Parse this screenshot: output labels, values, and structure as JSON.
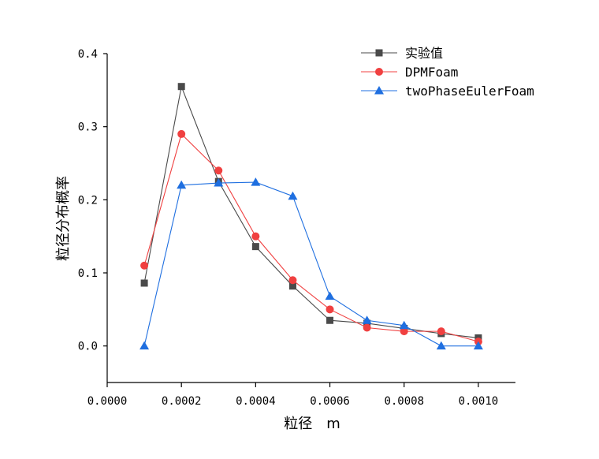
{
  "chart_data": {
    "type": "line",
    "title": "",
    "xlabel": "粒径　m",
    "ylabel": "粒径分布概率",
    "xlim": [
      0,
      0.0011
    ],
    "ylim": [
      -0.05,
      0.4
    ],
    "xticks": [
      "0.0000",
      "0.0002",
      "0.0004",
      "0.0006",
      "0.0008",
      "0.0010"
    ],
    "xtick_values": [
      0,
      0.0002,
      0.0004,
      0.0006,
      0.0008,
      0.001
    ],
    "yticks": [
      "0.0",
      "0.1",
      "0.2",
      "0.3",
      "0.4"
    ],
    "ytick_values": [
      0,
      0.1,
      0.2,
      0.3,
      0.4
    ],
    "grid": false,
    "legend_position": "top-right",
    "x": [
      0.0001,
      0.0002,
      0.0003,
      0.0004,
      0.0005,
      0.0006,
      0.0007,
      0.0008,
      0.0009,
      0.001
    ],
    "series": [
      {
        "name": "实验值",
        "marker": "square",
        "color": "#4a4a4a",
        "line_color": "#4a4a4a",
        "values": [
          0.086,
          0.355,
          0.225,
          0.136,
          0.082,
          0.035,
          0.031,
          0.024,
          0.017,
          0.011
        ]
      },
      {
        "name": "DPMFoam",
        "marker": "circle",
        "color": "#f04040",
        "line_color": "#f04040",
        "values": [
          0.11,
          0.29,
          0.24,
          0.15,
          0.09,
          0.05,
          0.025,
          0.02,
          0.02,
          0.006
        ]
      },
      {
        "name": "twoPhaseEulerFoam",
        "marker": "triangle",
        "color": "#1f6fe0",
        "line_color": "#1f6fe0",
        "values": [
          0.0,
          0.22,
          0.223,
          0.224,
          0.205,
          0.068,
          0.035,
          0.028,
          0.0,
          0.0
        ]
      }
    ]
  }
}
